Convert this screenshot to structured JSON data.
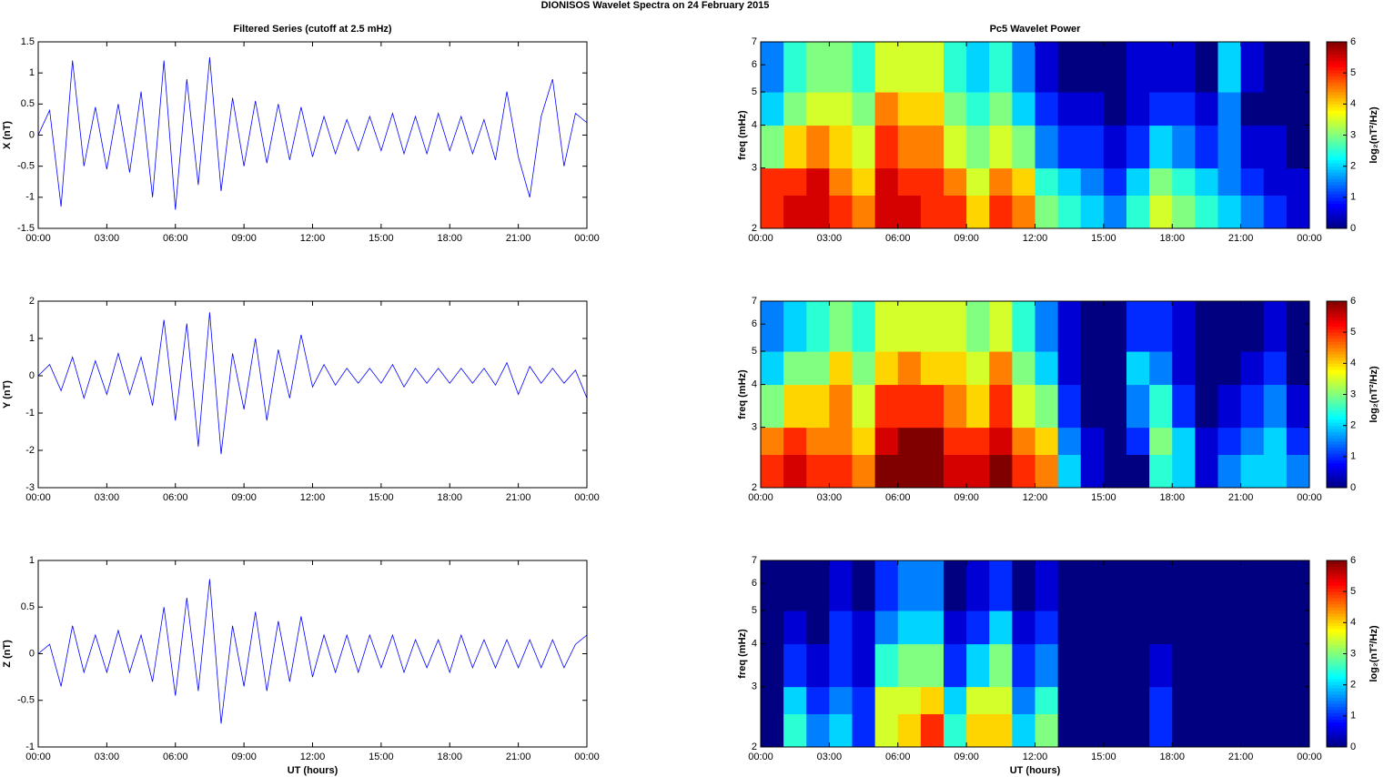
{
  "title": "DIONISOS Wavelet Spectra on 24 February  2015",
  "chart_data": [
    {
      "type": "line",
      "title": "Filtered Series (cutoff at 2.5 mHz)",
      "ylabel": "X (nT)",
      "color": "#0000ff",
      "x": [
        0,
        0.5,
        1,
        1.5,
        2,
        2.5,
        3,
        3.5,
        4,
        4.5,
        5,
        5.5,
        6,
        6.5,
        7,
        7.5,
        8,
        8.5,
        9,
        9.5,
        10,
        10.5,
        11,
        11.5,
        12,
        12.5,
        13,
        13.5,
        14,
        14.5,
        15,
        15.5,
        16,
        16.5,
        17,
        17.5,
        18,
        18.5,
        19,
        19.5,
        20,
        20.5,
        21,
        21.5,
        22,
        22.5,
        23,
        23.5,
        24
      ],
      "values": [
        0,
        0.4,
        -1.15,
        1.2,
        -0.5,
        0.45,
        -0.55,
        0.5,
        -0.6,
        0.7,
        -1.0,
        1.2,
        -1.2,
        0.9,
        -0.8,
        1.25,
        -0.9,
        0.6,
        -0.5,
        0.55,
        -0.45,
        0.5,
        -0.4,
        0.45,
        -0.35,
        0.3,
        -0.3,
        0.25,
        -0.25,
        0.3,
        -0.25,
        0.35,
        -0.3,
        0.3,
        -0.3,
        0.35,
        -0.25,
        0.3,
        -0.3,
        0.25,
        -0.4,
        0.7,
        -0.35,
        -1.0,
        0.3,
        0.9,
        -0.5,
        0.35,
        0.2
      ],
      "xlim": [
        0,
        24
      ],
      "xticks": [
        {
          "value": 0,
          "label": "00:00"
        },
        {
          "value": 3,
          "label": "03:00"
        },
        {
          "value": 6,
          "label": "06:00"
        },
        {
          "value": 9,
          "label": "09:00"
        },
        {
          "value": 12,
          "label": "12:00"
        },
        {
          "value": 15,
          "label": "15:00"
        },
        {
          "value": 18,
          "label": "18:00"
        },
        {
          "value": 21,
          "label": "21:00"
        },
        {
          "value": 24,
          "label": "00:00"
        }
      ],
      "ylim": [
        -1.5,
        1.5
      ],
      "yticks": [
        -1.5,
        -1,
        -0.5,
        0,
        0.5,
        1,
        1.5
      ]
    },
    {
      "type": "heatmap",
      "title": "Pc5 Wavelet Power",
      "ylabel": "freq (mHz)",
      "colormap": "jet",
      "log_y": true,
      "xbins": [
        0,
        1,
        2,
        3,
        4,
        5,
        6,
        7,
        8,
        9,
        10,
        11,
        12,
        13,
        14,
        15,
        16,
        17,
        18,
        19,
        20,
        21,
        22,
        23,
        24
      ],
      "ybins": [
        2,
        2.5,
        3,
        4,
        5,
        7
      ],
      "values": [
        [
          5,
          5.5,
          5.5,
          5,
          4.5,
          5.5,
          5.5,
          5,
          5,
          4,
          5,
          4.5,
          3,
          2.5,
          2,
          1.5,
          2.5,
          3.5,
          3,
          2.5,
          2,
          1.5,
          1,
          0.5
        ],
        [
          5,
          5,
          5.5,
          4.5,
          4,
          5.5,
          5,
          5,
          4.5,
          3.5,
          4.5,
          4,
          2.5,
          2,
          1.5,
          1,
          2,
          3,
          2.5,
          2,
          1.5,
          1,
          0.5,
          0.5
        ],
        [
          3,
          4,
          4.5,
          4,
          3.5,
          5,
          4.5,
          4.5,
          3.5,
          3,
          3.5,
          3,
          1.5,
          1,
          1,
          0.5,
          1,
          2,
          1.5,
          1,
          1.5,
          0.5,
          0.5,
          0
        ],
        [
          2,
          3,
          3.5,
          3.5,
          3,
          4.5,
          4,
          4,
          3,
          2.5,
          3,
          2,
          1,
          0.5,
          0.5,
          0,
          0.5,
          1,
          1,
          0.5,
          1.5,
          0,
          0,
          0
        ],
        [
          1.5,
          2.5,
          3,
          3,
          2.5,
          3.5,
          3.5,
          3.5,
          2.5,
          2,
          2.5,
          1.5,
          0.5,
          0,
          0,
          0,
          0.5,
          0.5,
          0.5,
          0,
          2,
          0.5,
          0,
          0
        ]
      ],
      "xlim": [
        0,
        24
      ],
      "xticks": [
        {
          "value": 0,
          "label": "00:00"
        },
        {
          "value": 3,
          "label": "03:00"
        },
        {
          "value": 6,
          "label": "06:00"
        },
        {
          "value": 9,
          "label": "09:00"
        },
        {
          "value": 12,
          "label": "12:00"
        },
        {
          "value": 15,
          "label": "15:00"
        },
        {
          "value": 18,
          "label": "18:00"
        },
        {
          "value": 21,
          "label": "21:00"
        },
        {
          "value": 24,
          "label": "00:00"
        }
      ],
      "ylim": [
        2,
        7
      ],
      "yticks": [
        2,
        3,
        4,
        5,
        6,
        7
      ],
      "clim": [
        0,
        6
      ],
      "cticks": [
        0,
        1,
        2,
        3,
        4,
        5,
        6
      ],
      "clabel": "log₂(nT²/Hz)"
    },
    {
      "type": "line",
      "ylabel": "Y (nT)",
      "color": "#0000ff",
      "x": [
        0,
        0.5,
        1,
        1.5,
        2,
        2.5,
        3,
        3.5,
        4,
        4.5,
        5,
        5.5,
        6,
        6.5,
        7,
        7.5,
        8,
        8.5,
        9,
        9.5,
        10,
        10.5,
        11,
        11.5,
        12,
        12.5,
        13,
        13.5,
        14,
        14.5,
        15,
        15.5,
        16,
        16.5,
        17,
        17.5,
        18,
        18.5,
        19,
        19.5,
        20,
        20.5,
        21,
        21.5,
        22,
        22.5,
        23,
        23.5,
        24
      ],
      "values": [
        0,
        0.3,
        -0.4,
        0.5,
        -0.6,
        0.4,
        -0.5,
        0.6,
        -0.5,
        0.5,
        -0.8,
        1.5,
        -1.2,
        1.4,
        -1.9,
        1.7,
        -2.1,
        0.6,
        -0.9,
        1.0,
        -1.2,
        0.7,
        -0.6,
        1.1,
        -0.3,
        0.3,
        -0.25,
        0.2,
        -0.2,
        0.2,
        -0.2,
        0.3,
        -0.3,
        0.2,
        -0.2,
        0.2,
        -0.2,
        0.2,
        -0.2,
        0.2,
        -0.25,
        0.35,
        -0.5,
        0.25,
        -0.2,
        0.2,
        -0.2,
        0.15,
        -0.6
      ],
      "xlim": [
        0,
        24
      ],
      "xticks": [
        {
          "value": 0,
          "label": "00:00"
        },
        {
          "value": 3,
          "label": "03:00"
        },
        {
          "value": 6,
          "label": "06:00"
        },
        {
          "value": 9,
          "label": "09:00"
        },
        {
          "value": 12,
          "label": "12:00"
        },
        {
          "value": 15,
          "label": "15:00"
        },
        {
          "value": 18,
          "label": "18:00"
        },
        {
          "value": 21,
          "label": "21:00"
        },
        {
          "value": 24,
          "label": "00:00"
        }
      ],
      "ylim": [
        -3,
        2
      ],
      "yticks": [
        -3,
        -2,
        -1,
        0,
        1,
        2
      ]
    },
    {
      "type": "heatmap",
      "ylabel": "freq (mHz)",
      "colormap": "jet",
      "log_y": true,
      "xbins": [
        0,
        1,
        2,
        3,
        4,
        5,
        6,
        7,
        8,
        9,
        10,
        11,
        12,
        13,
        14,
        15,
        16,
        17,
        18,
        19,
        20,
        21,
        22,
        23,
        24
      ],
      "ybins": [
        2,
        2.5,
        3,
        4,
        5,
        7
      ],
      "values": [
        [
          5,
          5.5,
          5,
          5,
          4.5,
          6,
          6,
          6,
          5.5,
          5.5,
          6,
          5,
          4.5,
          2,
          0.5,
          0,
          0,
          2.5,
          2,
          0.5,
          1.5,
          2,
          2,
          1.5
        ],
        [
          4.5,
          5,
          4.5,
          4.5,
          4,
          5.5,
          6,
          6,
          5,
          5,
          5.5,
          4.5,
          4,
          1.5,
          0.5,
          0,
          1,
          3,
          2,
          0.5,
          1,
          1.5,
          2,
          1
        ],
        [
          3,
          4,
          4,
          4.5,
          3.5,
          5,
          5,
          5,
          4.5,
          4,
          5,
          3.5,
          3,
          1,
          0,
          0,
          1.5,
          2.5,
          1,
          0,
          0.5,
          1,
          1.5,
          0.5
        ],
        [
          2,
          3,
          3,
          4,
          3,
          4,
          4.5,
          4,
          4,
          3.5,
          4.5,
          3,
          2,
          0.5,
          0,
          0,
          2,
          1.5,
          0.5,
          0,
          0,
          0.5,
          1,
          0
        ],
        [
          1.5,
          2,
          2.5,
          3,
          2.5,
          3.5,
          3.5,
          3.5,
          3.5,
          3,
          3.5,
          2.5,
          1.5,
          0.5,
          0,
          0,
          1,
          1,
          0.5,
          0,
          0,
          0,
          0.5,
          0
        ]
      ],
      "xlim": [
        0,
        24
      ],
      "xticks": [
        {
          "value": 0,
          "label": "00:00"
        },
        {
          "value": 3,
          "label": "03:00"
        },
        {
          "value": 6,
          "label": "06:00"
        },
        {
          "value": 9,
          "label": "09:00"
        },
        {
          "value": 12,
          "label": "12:00"
        },
        {
          "value": 15,
          "label": "15:00"
        },
        {
          "value": 18,
          "label": "18:00"
        },
        {
          "value": 21,
          "label": "21:00"
        },
        {
          "value": 24,
          "label": "00:00"
        }
      ],
      "ylim": [
        2,
        7
      ],
      "yticks": [
        2,
        3,
        4,
        5,
        6,
        7
      ],
      "clim": [
        0,
        6
      ],
      "cticks": [
        0,
        1,
        2,
        3,
        4,
        5,
        6
      ],
      "clabel": "log₂(nT²/Hz)"
    },
    {
      "type": "line",
      "ylabel": "Z (nT)",
      "xlabel": "UT (hours)",
      "color": "#0000ff",
      "x": [
        0,
        0.5,
        1,
        1.5,
        2,
        2.5,
        3,
        3.5,
        4,
        4.5,
        5,
        5.5,
        6,
        6.5,
        7,
        7.5,
        8,
        8.5,
        9,
        9.5,
        10,
        10.5,
        11,
        11.5,
        12,
        12.5,
        13,
        13.5,
        14,
        14.5,
        15,
        15.5,
        16,
        16.5,
        17,
        17.5,
        18,
        18.5,
        19,
        19.5,
        20,
        20.5,
        21,
        21.5,
        22,
        22.5,
        23,
        23.5,
        24
      ],
      "values": [
        0,
        0.1,
        -0.35,
        0.3,
        -0.2,
        0.2,
        -0.2,
        0.25,
        -0.2,
        0.2,
        -0.3,
        0.5,
        -0.45,
        0.6,
        -0.4,
        0.8,
        -0.75,
        0.3,
        -0.35,
        0.45,
        -0.4,
        0.35,
        -0.3,
        0.4,
        -0.25,
        0.2,
        -0.2,
        0.2,
        -0.2,
        0.2,
        -0.15,
        0.2,
        -0.2,
        0.15,
        -0.15,
        0.15,
        -0.2,
        0.2,
        -0.15,
        0.15,
        -0.15,
        0.15,
        -0.15,
        0.15,
        -0.15,
        0.15,
        -0.15,
        0.1,
        0.2
      ],
      "xlim": [
        0,
        24
      ],
      "xticks": [
        {
          "value": 0,
          "label": "00:00"
        },
        {
          "value": 3,
          "label": "03:00"
        },
        {
          "value": 6,
          "label": "06:00"
        },
        {
          "value": 9,
          "label": "09:00"
        },
        {
          "value": 12,
          "label": "12:00"
        },
        {
          "value": 15,
          "label": "15:00"
        },
        {
          "value": 18,
          "label": "18:00"
        },
        {
          "value": 21,
          "label": "21:00"
        },
        {
          "value": 24,
          "label": "00:00"
        }
      ],
      "ylim": [
        -1,
        1
      ],
      "yticks": [
        -1,
        -0.5,
        0,
        0.5,
        1
      ]
    },
    {
      "type": "heatmap",
      "ylabel": "freq (mHz)",
      "xlabel": "UT (hours)",
      "colormap": "jet",
      "log_y": true,
      "xbins": [
        0,
        1,
        2,
        3,
        4,
        5,
        6,
        7,
        8,
        9,
        10,
        11,
        12,
        13,
        14,
        15,
        16,
        17,
        18,
        19,
        20,
        21,
        22,
        23,
        24
      ],
      "ybins": [
        2,
        2.5,
        3,
        4,
        5,
        7
      ],
      "values": [
        [
          0,
          2.5,
          1.5,
          2,
          1,
          3.5,
          4,
          5,
          2.5,
          4,
          4,
          2,
          3,
          0,
          0,
          0,
          0,
          1,
          0,
          0,
          0,
          0,
          0,
          0
        ],
        [
          0,
          2,
          1,
          1.5,
          1,
          3.5,
          3.5,
          4,
          2,
          3.5,
          3.5,
          1.5,
          2.5,
          0,
          0,
          0,
          0,
          1,
          0,
          0,
          0,
          0,
          0,
          0
        ],
        [
          0,
          1,
          0.5,
          1,
          0.5,
          2.5,
          3,
          3,
          1,
          2,
          3,
          1,
          1.5,
          0,
          0,
          0,
          0,
          0.5,
          0,
          0,
          0,
          0,
          0,
          0
        ],
        [
          0,
          0.5,
          0,
          1,
          0.5,
          1.5,
          2,
          2,
          0.5,
          1,
          2,
          0.5,
          1,
          0,
          0,
          0,
          0,
          0,
          0,
          0,
          0,
          0,
          0,
          0
        ],
        [
          0,
          0,
          0,
          0.5,
          0,
          1,
          1.5,
          1.5,
          0,
          0.5,
          1,
          0,
          0.5,
          0,
          0,
          0,
          0,
          0,
          0,
          0,
          0,
          0,
          0,
          0
        ]
      ],
      "xlim": [
        0,
        24
      ],
      "xticks": [
        {
          "value": 0,
          "label": "00:00"
        },
        {
          "value": 3,
          "label": "03:00"
        },
        {
          "value": 6,
          "label": "06:00"
        },
        {
          "value": 9,
          "label": "09:00"
        },
        {
          "value": 12,
          "label": "12:00"
        },
        {
          "value": 15,
          "label": "15:00"
        },
        {
          "value": 18,
          "label": "18:00"
        },
        {
          "value": 21,
          "label": "21:00"
        },
        {
          "value": 24,
          "label": "00:00"
        }
      ],
      "ylim": [
        2,
        7
      ],
      "yticks": [
        2,
        3,
        4,
        5,
        6,
        7
      ],
      "clim": [
        0,
        6
      ],
      "cticks": [
        0,
        1,
        2,
        3,
        4,
        5,
        6
      ],
      "clabel": "log₂(nT²/Hz)"
    }
  ]
}
